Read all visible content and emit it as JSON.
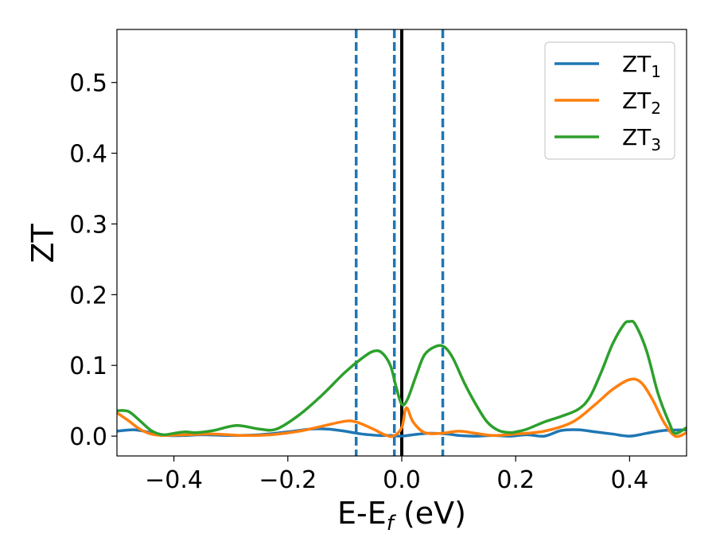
{
  "chart_data": {
    "type": "line",
    "title": "",
    "xlabel": "E-E",
    "xlabel_subscript": "f",
    "xlabel_suffix": " (eV)",
    "ylabel": "ZT",
    "xlim": [
      -0.5,
      0.5
    ],
    "ylim": [
      -0.028,
      0.575
    ],
    "xticks": [
      -0.4,
      -0.2,
      0.0,
      0.2,
      0.4
    ],
    "xtick_labels": [
      "−0.4",
      "−0.2",
      "0.0",
      "0.2",
      "0.4"
    ],
    "yticks": [
      0.0,
      0.1,
      0.2,
      0.3,
      0.4,
      0.5
    ],
    "ytick_labels": [
      "0.0",
      "0.1",
      "0.2",
      "0.3",
      "0.4",
      "0.5"
    ],
    "grid": false,
    "legend_position": "top-right",
    "vertical_lines": [
      {
        "x": -0.08,
        "style": "dashed",
        "color": "#1f77b4"
      },
      {
        "x": -0.013,
        "style": "dashed",
        "color": "#1f77b4"
      },
      {
        "x": 0.0,
        "style": "solid",
        "color": "#000000"
      },
      {
        "x": 0.072,
        "style": "dashed",
        "color": "#1f77b4"
      }
    ],
    "series": [
      {
        "name": "ZT",
        "subscript": "1",
        "color": "#1f77b4",
        "x": [
          -0.5,
          -0.47,
          -0.44,
          -0.41,
          -0.38,
          -0.35,
          -0.3,
          -0.25,
          -0.2,
          -0.16,
          -0.13,
          -0.1,
          -0.07,
          -0.04,
          -0.02,
          0.0,
          0.02,
          0.05,
          0.08,
          0.1,
          0.13,
          0.16,
          0.19,
          0.22,
          0.25,
          0.28,
          0.31,
          0.34,
          0.37,
          0.4,
          0.43,
          0.46,
          0.5
        ],
        "values": [
          0.007,
          0.009,
          0.005,
          0.001,
          0.001,
          0.002,
          0.001,
          0.002,
          0.006,
          0.01,
          0.01,
          0.007,
          0.003,
          0.001,
          0.001,
          0.0,
          0.002,
          0.004,
          0.003,
          0.001,
          0.0,
          0.001,
          0.0,
          0.002,
          0.0,
          0.008,
          0.009,
          0.006,
          0.003,
          0.0,
          0.004,
          0.008,
          0.009
        ]
      },
      {
        "name": "ZT",
        "subscript": "2",
        "color": "#ff7f0e",
        "x": [
          -0.5,
          -0.48,
          -0.46,
          -0.44,
          -0.42,
          -0.38,
          -0.33,
          -0.28,
          -0.23,
          -0.18,
          -0.14,
          -0.1,
          -0.08,
          -0.05,
          -0.03,
          -0.015,
          0.0,
          0.008,
          0.02,
          0.04,
          0.07,
          0.1,
          0.13,
          0.16,
          0.2,
          0.25,
          0.3,
          0.34,
          0.37,
          0.4,
          0.42,
          0.44,
          0.46,
          0.48,
          0.5
        ],
        "values": [
          0.033,
          0.022,
          0.01,
          0.003,
          0.001,
          0.002,
          0.003,
          0.001,
          0.002,
          0.007,
          0.014,
          0.021,
          0.02,
          0.01,
          0.002,
          0.0,
          0.012,
          0.04,
          0.02,
          0.005,
          0.004,
          0.007,
          0.004,
          0.001,
          0.003,
          0.007,
          0.02,
          0.045,
          0.066,
          0.08,
          0.076,
          0.052,
          0.02,
          0.0,
          0.005
        ]
      },
      {
        "name": "ZT",
        "subscript": "3",
        "color": "#2ca02c",
        "x": [
          -0.5,
          -0.48,
          -0.46,
          -0.44,
          -0.42,
          -0.4,
          -0.38,
          -0.36,
          -0.33,
          -0.29,
          -0.25,
          -0.22,
          -0.18,
          -0.14,
          -0.1,
          -0.07,
          -0.05,
          -0.035,
          -0.02,
          -0.01,
          0.0,
          0.01,
          0.025,
          0.04,
          0.06,
          0.075,
          0.09,
          0.11,
          0.13,
          0.15,
          0.17,
          0.19,
          0.2,
          0.22,
          0.25,
          0.28,
          0.31,
          0.33,
          0.35,
          0.37,
          0.39,
          0.4,
          0.41,
          0.43,
          0.45,
          0.47,
          0.48,
          0.5
        ],
        "values": [
          0.036,
          0.035,
          0.022,
          0.008,
          0.002,
          0.004,
          0.006,
          0.005,
          0.008,
          0.015,
          0.01,
          0.01,
          0.03,
          0.058,
          0.09,
          0.11,
          0.12,
          0.118,
          0.1,
          0.07,
          0.045,
          0.052,
          0.085,
          0.115,
          0.127,
          0.126,
          0.11,
          0.075,
          0.045,
          0.02,
          0.008,
          0.005,
          0.006,
          0.01,
          0.02,
          0.028,
          0.038,
          0.055,
          0.09,
          0.13,
          0.158,
          0.162,
          0.158,
          0.12,
          0.06,
          0.018,
          0.004,
          0.012
        ]
      }
    ]
  }
}
